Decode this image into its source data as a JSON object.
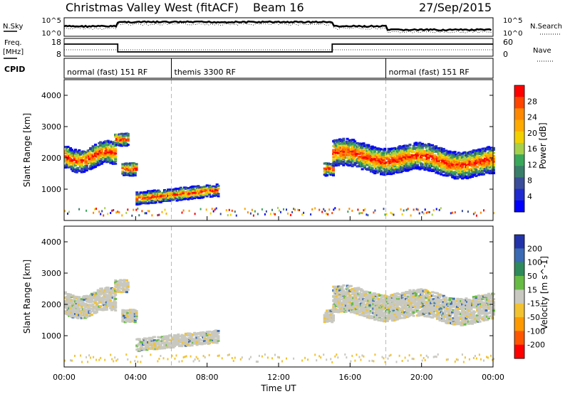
{
  "header": {
    "station": "Christmas Valley West (fitACF)",
    "beam": "Beam 16",
    "date": "27/Sep/2015"
  },
  "noise_panel": {
    "left_label": "N.Sky",
    "right_label": "N.Search",
    "left_ticks": [
      "10^5",
      "10^0"
    ],
    "right_ticks": [
      "10^5",
      "10^0"
    ]
  },
  "freq_panel": {
    "left_label_line1": "Freq.",
    "left_label_line2": "[MHz]",
    "right_label": "Nave",
    "left_ticks": [
      "18",
      "8"
    ],
    "right_ticks": [
      "60",
      "0"
    ]
  },
  "cpid_panel": {
    "label": "CPID",
    "segments": [
      {
        "name": "normal (fast) 151 RF",
        "start_hour": 0,
        "end_hour": 6
      },
      {
        "name": "themis 3300 RF",
        "start_hour": 6,
        "end_hour": 18
      },
      {
        "name": "normal (fast) 151 RF",
        "start_hour": 18,
        "end_hour": 24
      }
    ]
  },
  "chart_data": [
    {
      "type": "heatmap",
      "name": "power",
      "ylabel": "Slant Range [km]",
      "colorbar_label": "Power [dB]",
      "colorbar_ticks": [
        "28",
        "24",
        "20",
        "16",
        "12",
        "8",
        "4"
      ],
      "colorbar_colors": [
        "#ff0000",
        "#ff4400",
        "#ff8800",
        "#ffaa00",
        "#f2d000",
        "#a6d04a",
        "#3aa85a",
        "#3a7e6a",
        "#3a4d9a",
        "#1f2bd0",
        "#0000ff"
      ],
      "ylim": [
        0,
        4500
      ],
      "yticks": [
        "4000",
        "3000",
        "2000",
        "1000"
      ],
      "ytick_values": [
        4000,
        3000,
        2000,
        1000
      ]
    },
    {
      "type": "heatmap",
      "name": "velocity",
      "ylabel": "Slant Range [km]",
      "colorbar_label": "Velocity [m s^-1]",
      "colorbar_ticks": [
        "200",
        "100",
        "50",
        "15",
        "-15",
        "-50",
        "-100",
        "-200"
      ],
      "colorbar_colors": [
        "#2233aa",
        "#3a6ab4",
        "#2e8a5a",
        "#66bb44",
        "#c8c8c0",
        "#f2c230",
        "#ff9900",
        "#ff5500",
        "#ff0000"
      ],
      "ylim": [
        0,
        4500
      ],
      "yticks": [
        "4000",
        "3000",
        "2000",
        "1000"
      ],
      "ytick_values": [
        4000,
        3000,
        2000,
        1000
      ]
    }
  ],
  "x_axis": {
    "label": "Time UT",
    "ticks": [
      "00:00",
      "04:00",
      "08:00",
      "12:00",
      "16:00",
      "20:00",
      "00:00"
    ],
    "range_hours": [
      0,
      24
    ]
  }
}
